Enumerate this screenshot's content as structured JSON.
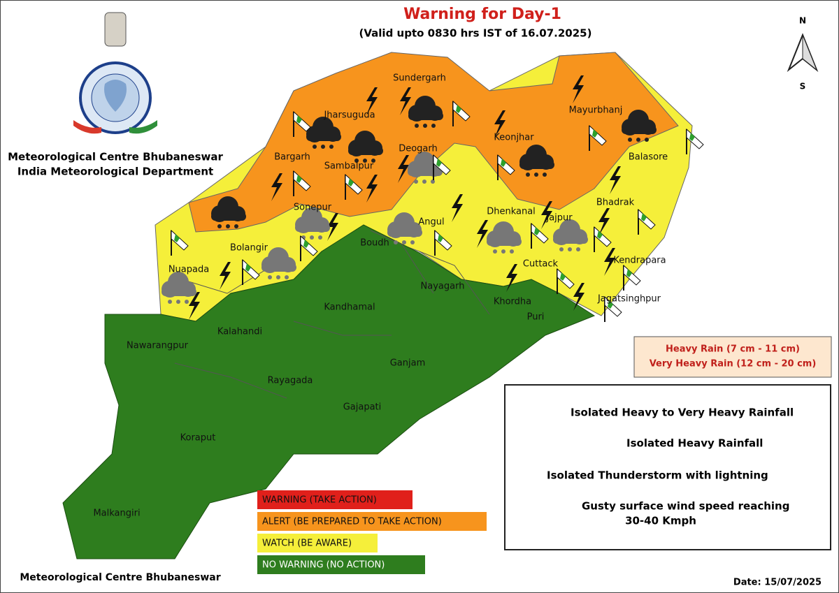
{
  "header": {
    "title": "Warning for Day-1",
    "subtitle": "(Valid  upto 0830 hrs IST of 16.07.2025)"
  },
  "organization": {
    "centre": "Meteorological Centre Bhubaneswar",
    "department": "India Meteorological Department"
  },
  "compass": {
    "north": "N",
    "south": "S"
  },
  "districts": [
    "Sundergarh",
    "Jharsuguda",
    "Deogarh",
    "Keonjhar",
    "Mayurbhanj",
    "Bargarh",
    "Sambalpur",
    "Balasore",
    "Sonepur",
    "Angul",
    "Dhenkanal",
    "Jajpur",
    "Bhadrak",
    "Bolangir",
    "Boudh",
    "Nuapada",
    "Cuttack",
    "Kendrapara",
    "Nayagarh",
    "Kandhamal",
    "Khordha",
    "Jagatsinghpur",
    "Puri",
    "Kalahandi",
    "Nawarangpur",
    "Ganjam",
    "Rayagada",
    "Gajapati",
    "Koraput",
    "Malkangiri"
  ],
  "rain_box": [
    "Heavy Rain (7 cm - 11 cm)",
    "Very Heavy Rain (12 cm - 20 cm)"
  ],
  "legend": [
    "Isolated Heavy to Very Heavy Rainfall",
    "Isolated Heavy Rainfall",
    "Isolated Thunderstorm with lightning",
    "Gusty surface wind speed reaching",
    "30-40 Kmph"
  ],
  "color_key": [
    {
      "label": "WARNING (TAKE ACTION)",
      "color": "#e0201b"
    },
    {
      "label": "ALERT (BE PREPARED TO TAKE ACTION)",
      "color": "#f7941d"
    },
    {
      "label": "WATCH (BE AWARE)",
      "color": "#f5ef3a"
    },
    {
      "label": "NO WARNING (NO ACTION)",
      "color": "#2e7d1e"
    }
  ],
  "footer": {
    "centre": "Meteorological Centre Bhubaneswar",
    "date": "Date: 15/07/2025"
  }
}
